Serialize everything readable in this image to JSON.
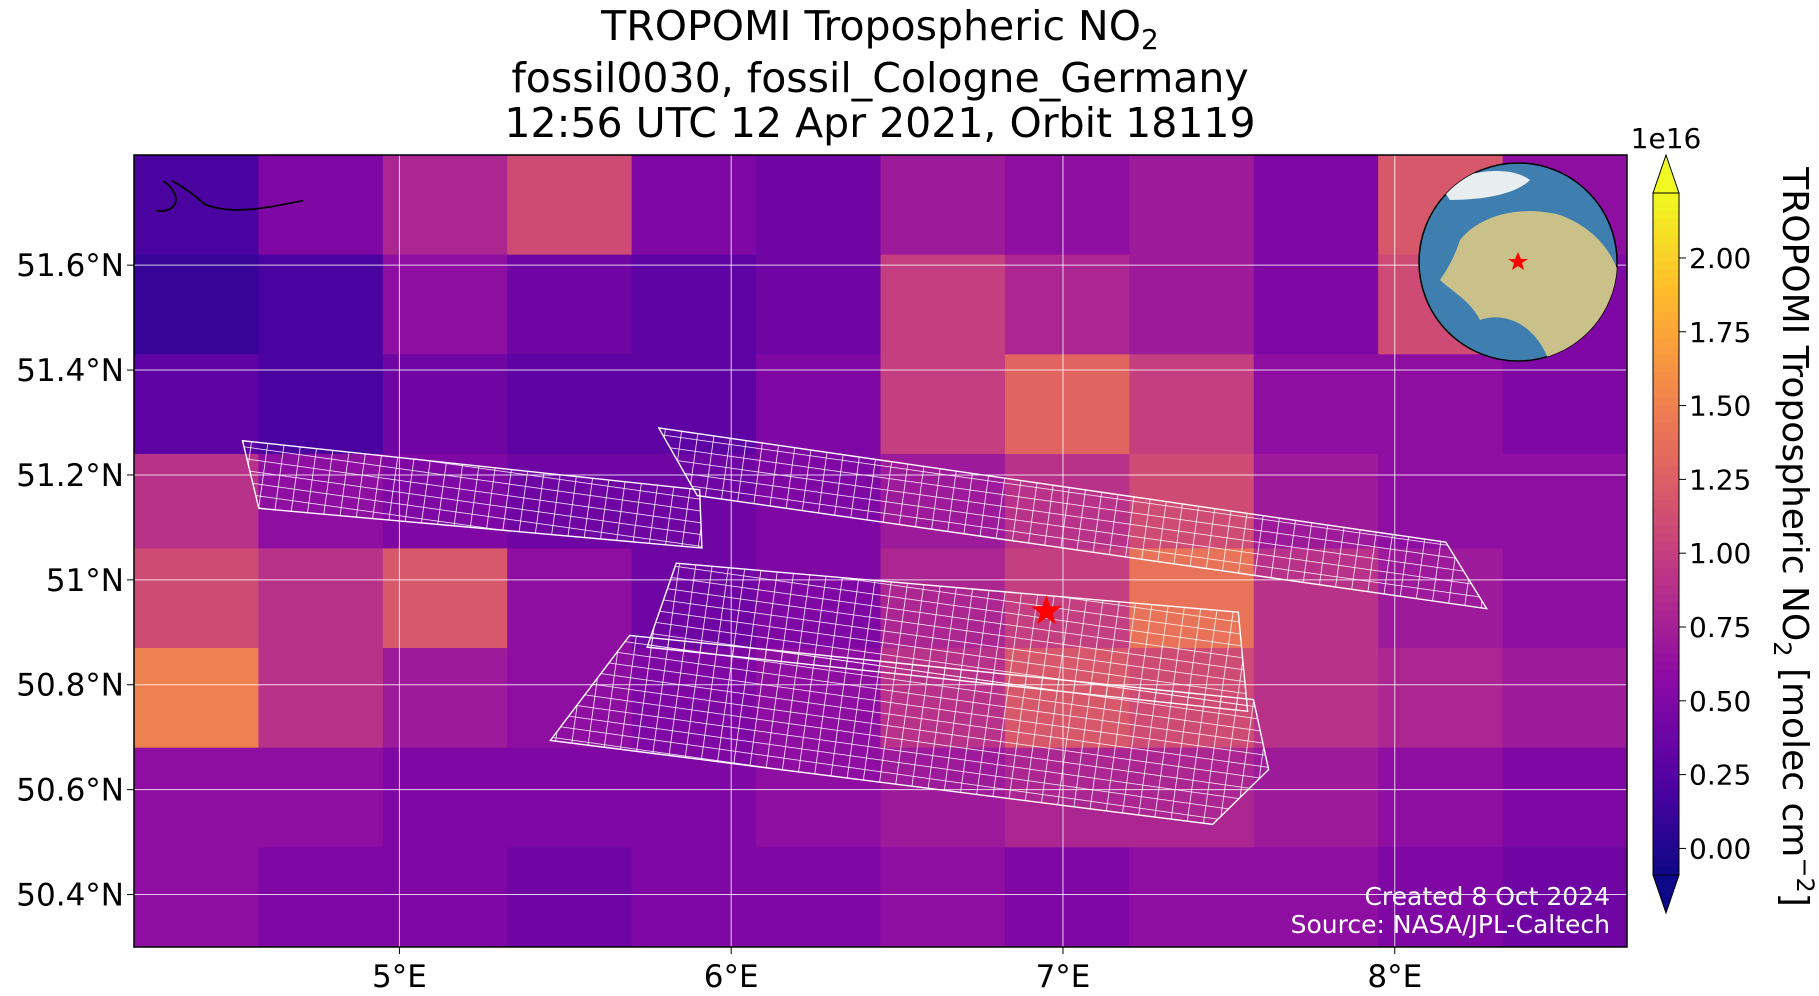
{
  "chart_data": {
    "type": "map",
    "title": {
      "text": "TROPOMI Tropospheric NO",
      "subscript": "2"
    },
    "subtitle_1": "fossil0030, fossil_Cologne_Germany",
    "subtitle_2": "12:56 UTC 12 Apr 2021, Orbit 18119",
    "xlim": [
      4.2,
      8.7
    ],
    "ylim": [
      50.3,
      51.81
    ],
    "xticks": [
      {
        "value": 5,
        "label": "5°E"
      },
      {
        "value": 6,
        "label": "6°E"
      },
      {
        "value": 7,
        "label": "7°E"
      },
      {
        "value": 8,
        "label": "8°E"
      }
    ],
    "yticks": [
      {
        "value": 50.4,
        "label": "50.4°N"
      },
      {
        "value": 50.6,
        "label": "50.6°N"
      },
      {
        "value": 50.8,
        "label": "50.8°N"
      },
      {
        "value": 51,
        "label": "51°N"
      },
      {
        "value": 51.2,
        "label": "51.2°N"
      },
      {
        "value": 51.4,
        "label": "51.4°N"
      },
      {
        "value": 51.6,
        "label": "51.6°N"
      }
    ],
    "grid": true,
    "colormap": "plasma",
    "clim": [
      -0.09,
      2.22
    ],
    "colorbar_ticks": [
      {
        "value": 0,
        "label": "0.00"
      },
      {
        "value": 0.25,
        "label": "0.25"
      },
      {
        "value": 0.5,
        "label": "0.50"
      },
      {
        "value": 0.75,
        "label": "0.75"
      },
      {
        "value": 1,
        "label": "1.00"
      },
      {
        "value": 1.25,
        "label": "1.25"
      },
      {
        "value": 1.5,
        "label": "1.50"
      },
      {
        "value": 1.75,
        "label": "1.75"
      },
      {
        "value": 2,
        "label": "2.00"
      }
    ],
    "colorbar_exponent": "1e16",
    "colorbar_label": [
      "TROPOMI Tropospheric NO",
      "2",
      " [molec cm",
      "−2",
      "]"
    ],
    "no2_grid": {
      "lon_edges": [
        4.2,
        4.575,
        4.95,
        5.325,
        5.7,
        6.075,
        6.45,
        6.825,
        7.2,
        7.575,
        7.95,
        8.325,
        8.7
      ],
      "lat_edges": [
        51.81,
        51.62,
        51.43,
        51.24,
        51.06,
        50.87,
        50.68,
        50.49,
        50.3
      ],
      "values": [
        [
          0.2,
          0.5,
          0.8,
          1.1,
          0.5,
          0.4,
          0.7,
          0.6,
          0.7,
          0.5,
          1.2,
          0.6
        ],
        [
          0.1,
          0.2,
          0.6,
          0.4,
          0.3,
          0.4,
          1.0,
          0.8,
          0.7,
          0.5,
          1.1,
          0.5
        ],
        [
          0.3,
          0.2,
          0.4,
          0.3,
          0.3,
          0.5,
          1.0,
          1.3,
          1.0,
          0.6,
          0.6,
          0.5
        ],
        [
          0.9,
          0.6,
          0.5,
          0.4,
          0.4,
          0.5,
          0.7,
          0.9,
          1.1,
          0.7,
          0.6,
          0.6
        ],
        [
          1.1,
          0.9,
          1.2,
          0.6,
          0.4,
          0.5,
          0.8,
          1.0,
          1.4,
          0.9,
          0.7,
          0.6
        ],
        [
          1.5,
          0.9,
          0.7,
          0.6,
          0.5,
          0.6,
          0.9,
          1.2,
          1.1,
          0.9,
          0.8,
          0.7
        ],
        [
          0.6,
          0.6,
          0.5,
          0.5,
          0.5,
          0.6,
          0.7,
          0.8,
          0.8,
          0.7,
          0.6,
          0.5
        ],
        [
          0.6,
          0.5,
          0.5,
          0.4,
          0.5,
          0.5,
          0.6,
          0.5,
          0.6,
          0.6,
          0.5,
          0.4
        ]
      ]
    },
    "target": {
      "lon": 6.95,
      "lat": 50.94,
      "color": "#ff0000"
    },
    "credit_created": "Created 8 Oct 2024",
    "credit_source": "Source: NASA/JPL-Caltech"
  }
}
